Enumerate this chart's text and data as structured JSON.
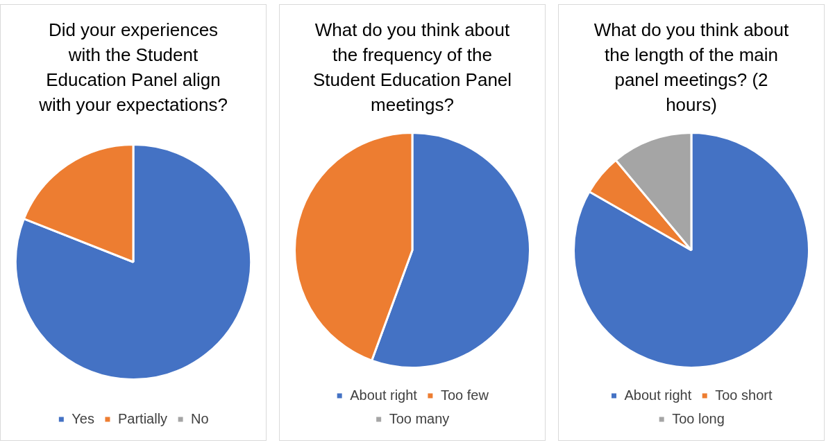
{
  "chart_data": [
    {
      "type": "pie",
      "title": "Did your experiences with the Student Education Panel align with your expectations?",
      "categories": [
        "Yes",
        "Partially",
        "No"
      ],
      "values": [
        81,
        19,
        0
      ],
      "colors": [
        "#4472c4",
        "#ed7d31",
        "#a5a5a5"
      ],
      "legend": "bottom"
    },
    {
      "type": "pie",
      "title": "What do you think about the frequency of the Student Education Panel meetings?",
      "categories": [
        "About right",
        "Too few",
        "Too many"
      ],
      "values": [
        55.6,
        44.4,
        0
      ],
      "colors": [
        "#4472c4",
        "#ed7d31",
        "#a5a5a5"
      ],
      "legend": "bottom"
    },
    {
      "type": "pie",
      "title": "What do you think about the length of the main panel meetings? (2 hours)",
      "categories": [
        "About right",
        "Too short",
        "Too long"
      ],
      "values": [
        83.3,
        5.6,
        11.1
      ],
      "colors": [
        "#4472c4",
        "#ed7d31",
        "#a5a5a5"
      ],
      "legend": "bottom"
    }
  ]
}
